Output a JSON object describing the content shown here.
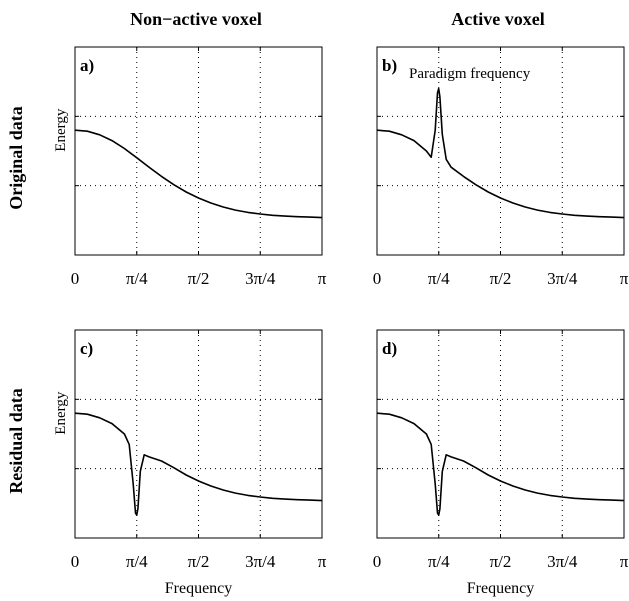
{
  "figure": {
    "col_titles": [
      "Non−active voxel",
      "Active voxel"
    ],
    "row_titles": [
      "Original data",
      "Residual data"
    ]
  },
  "chart_data": [
    {
      "type": "line",
      "panel_label": "a)",
      "title": "",
      "xlabel": "",
      "ylabel": "Energy",
      "xlim": [
        0,
        3.1416
      ],
      "ylim": [
        0,
        1
      ],
      "xticks": [
        "0",
        "π/4",
        "π/2",
        "3π/4",
        "π"
      ],
      "grid": true,
      "annotation": "",
      "series": [
        {
          "x": [
            0,
            0.157,
            0.314,
            0.471,
            0.628,
            0.785,
            0.942,
            1.1,
            1.257,
            1.414,
            1.571,
            1.728,
            1.885,
            2.042,
            2.199,
            2.356,
            2.513,
            2.67,
            2.827,
            2.985,
            3.142
          ],
          "values": [
            0.6,
            0.595,
            0.578,
            0.55,
            0.512,
            0.468,
            0.422,
            0.378,
            0.338,
            0.303,
            0.274,
            0.25,
            0.231,
            0.216,
            0.205,
            0.197,
            0.191,
            0.187,
            0.184,
            0.182,
            0.18
          ]
        }
      ]
    },
    {
      "type": "line",
      "panel_label": "b)",
      "title": "",
      "xlabel": "",
      "ylabel": "",
      "xlim": [
        0,
        3.1416
      ],
      "ylim": [
        0,
        1
      ],
      "xticks": [
        "0",
        "π/4",
        "π/2",
        "3π/4",
        "π"
      ],
      "grid": true,
      "annotation": "Paradigm frequency",
      "series": [
        {
          "x": [
            0,
            0.157,
            0.314,
            0.471,
            0.628,
            0.69,
            0.74,
            0.77,
            0.785,
            0.8,
            0.83,
            0.88,
            0.942,
            1.1,
            1.257,
            1.414,
            1.571,
            1.728,
            1.885,
            2.042,
            2.199,
            2.356,
            2.513,
            2.67,
            2.827,
            2.985,
            3.142
          ],
          "values": [
            0.6,
            0.595,
            0.578,
            0.55,
            0.5,
            0.47,
            0.6,
            0.78,
            0.8,
            0.76,
            0.58,
            0.46,
            0.422,
            0.378,
            0.338,
            0.303,
            0.274,
            0.25,
            0.231,
            0.216,
            0.205,
            0.197,
            0.191,
            0.187,
            0.184,
            0.182,
            0.18
          ]
        }
      ]
    },
    {
      "type": "line",
      "panel_label": "c)",
      "title": "",
      "xlabel": "Frequency",
      "ylabel": "Energy",
      "xlim": [
        0,
        3.1416
      ],
      "ylim": [
        0,
        1
      ],
      "xticks": [
        "0",
        "π/4",
        "π/2",
        "3π/4",
        "π"
      ],
      "grid": true,
      "annotation": "",
      "series": [
        {
          "x": [
            0,
            0.157,
            0.314,
            0.471,
            0.628,
            0.69,
            0.74,
            0.77,
            0.785,
            0.8,
            0.83,
            0.88,
            0.942,
            1.1,
            1.257,
            1.414,
            1.571,
            1.728,
            1.885,
            2.042,
            2.199,
            2.356,
            2.513,
            2.67,
            2.827,
            2.985,
            3.142
          ],
          "values": [
            0.6,
            0.595,
            0.578,
            0.55,
            0.5,
            0.45,
            0.26,
            0.12,
            0.11,
            0.14,
            0.32,
            0.4,
            0.39,
            0.37,
            0.338,
            0.303,
            0.274,
            0.25,
            0.231,
            0.216,
            0.205,
            0.197,
            0.191,
            0.187,
            0.184,
            0.182,
            0.18
          ]
        }
      ]
    },
    {
      "type": "line",
      "panel_label": "d)",
      "title": "",
      "xlabel": "Frequency",
      "ylabel": "",
      "xlim": [
        0,
        3.1416
      ],
      "ylim": [
        0,
        1
      ],
      "xticks": [
        "0",
        "π/4",
        "π/2",
        "3π/4",
        "π"
      ],
      "grid": true,
      "annotation": "",
      "series": [
        {
          "x": [
            0,
            0.157,
            0.314,
            0.471,
            0.628,
            0.69,
            0.74,
            0.77,
            0.785,
            0.8,
            0.83,
            0.88,
            0.942,
            1.1,
            1.257,
            1.414,
            1.571,
            1.728,
            1.885,
            2.042,
            2.199,
            2.356,
            2.513,
            2.67,
            2.827,
            2.985,
            3.142
          ],
          "values": [
            0.6,
            0.595,
            0.578,
            0.55,
            0.5,
            0.45,
            0.26,
            0.12,
            0.11,
            0.14,
            0.32,
            0.4,
            0.39,
            0.37,
            0.338,
            0.303,
            0.274,
            0.25,
            0.231,
            0.216,
            0.205,
            0.197,
            0.191,
            0.187,
            0.184,
            0.182,
            0.18
          ]
        }
      ]
    }
  ]
}
